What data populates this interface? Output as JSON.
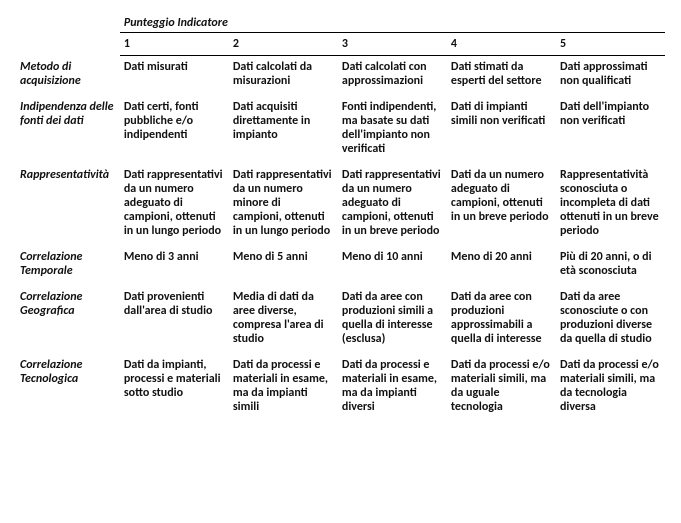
{
  "table": {
    "overheader": "Punteggio Indicatore",
    "columns": [
      "1",
      "2",
      "3",
      "4",
      "5"
    ],
    "rows": [
      {
        "label": "Metodo di acquisizione",
        "cells": [
          "Dati misurati",
          "Dati calcolati da misurazioni",
          "Dati calcolati con approssimazioni",
          "Dati stimati da esperti del settore",
          "Dati approssimati non qualificati"
        ]
      },
      {
        "label": "Indipendenza delle fonti dei dati",
        "cells": [
          "Dati certi, fonti pubbliche e/o indipendenti",
          "Dati acquisiti direttamente in impianto",
          "Fonti indipendenti, ma basate su dati dell'impianto non verificati",
          "Dati di impianti simili non verificati",
          "Dati dell'impianto non verificati"
        ]
      },
      {
        "label": "Rappresentatività",
        "cells": [
          "Dati rappresentativi da un numero adeguato di campioni, ottenuti in un lungo periodo",
          "Dati rappresentativi da un numero minore di campioni, ottenuti in un lungo periodo",
          "Dati rappresentativi da un numero adeguato di campioni, ottenuti in un breve periodo",
          "Dati da un numero adeguato di campioni, ottenuti in un breve periodo",
          "Rappresentatività sconosciuta o incompleta di dati ottenuti in un breve periodo"
        ]
      },
      {
        "label": "Correlazione Temporale",
        "cells": [
          "Meno di 3 anni",
          "Meno di 5 anni",
          "Meno di 10 anni",
          "Meno di 20 anni",
          "Più di 20 anni, o di età sconosciuta"
        ]
      },
      {
        "label": "Correlazione Geografica",
        "cells": [
          "Dati provenienti dall'area di studio",
          "Media di dati da aree diverse, compresa l'area di studio",
          "Dati da aree con produzioni simili a quella di interesse (esclusa)",
          "Dati da aree con produzioni approssimabili a quella di interesse",
          "Dati da aree sconosciute o con produzioni diverse da quella di studio"
        ]
      },
      {
        "label": "Correlazione Tecnologica",
        "cells": [
          "Dati da impianti, processi e materiali sotto studio",
          "Dati da processi e materiali in esame, ma da impianti simili",
          "Dati da processi e materiali in esame, ma da impianti diversi",
          "Dati da processi e/o materiali simili, ma da uguale tecnologia",
          "Dati da processi e/o materiali simili, ma da tecnologia diversa"
        ]
      }
    ]
  },
  "style": {
    "font_family": "Calibri",
    "base_font_size_pt": 9,
    "text_color": "#111111",
    "background_color": "#ffffff",
    "border_color": "#000000",
    "column_widths_pct": [
      16,
      16.8,
      16.8,
      16.8,
      16.8,
      16.8
    ]
  }
}
